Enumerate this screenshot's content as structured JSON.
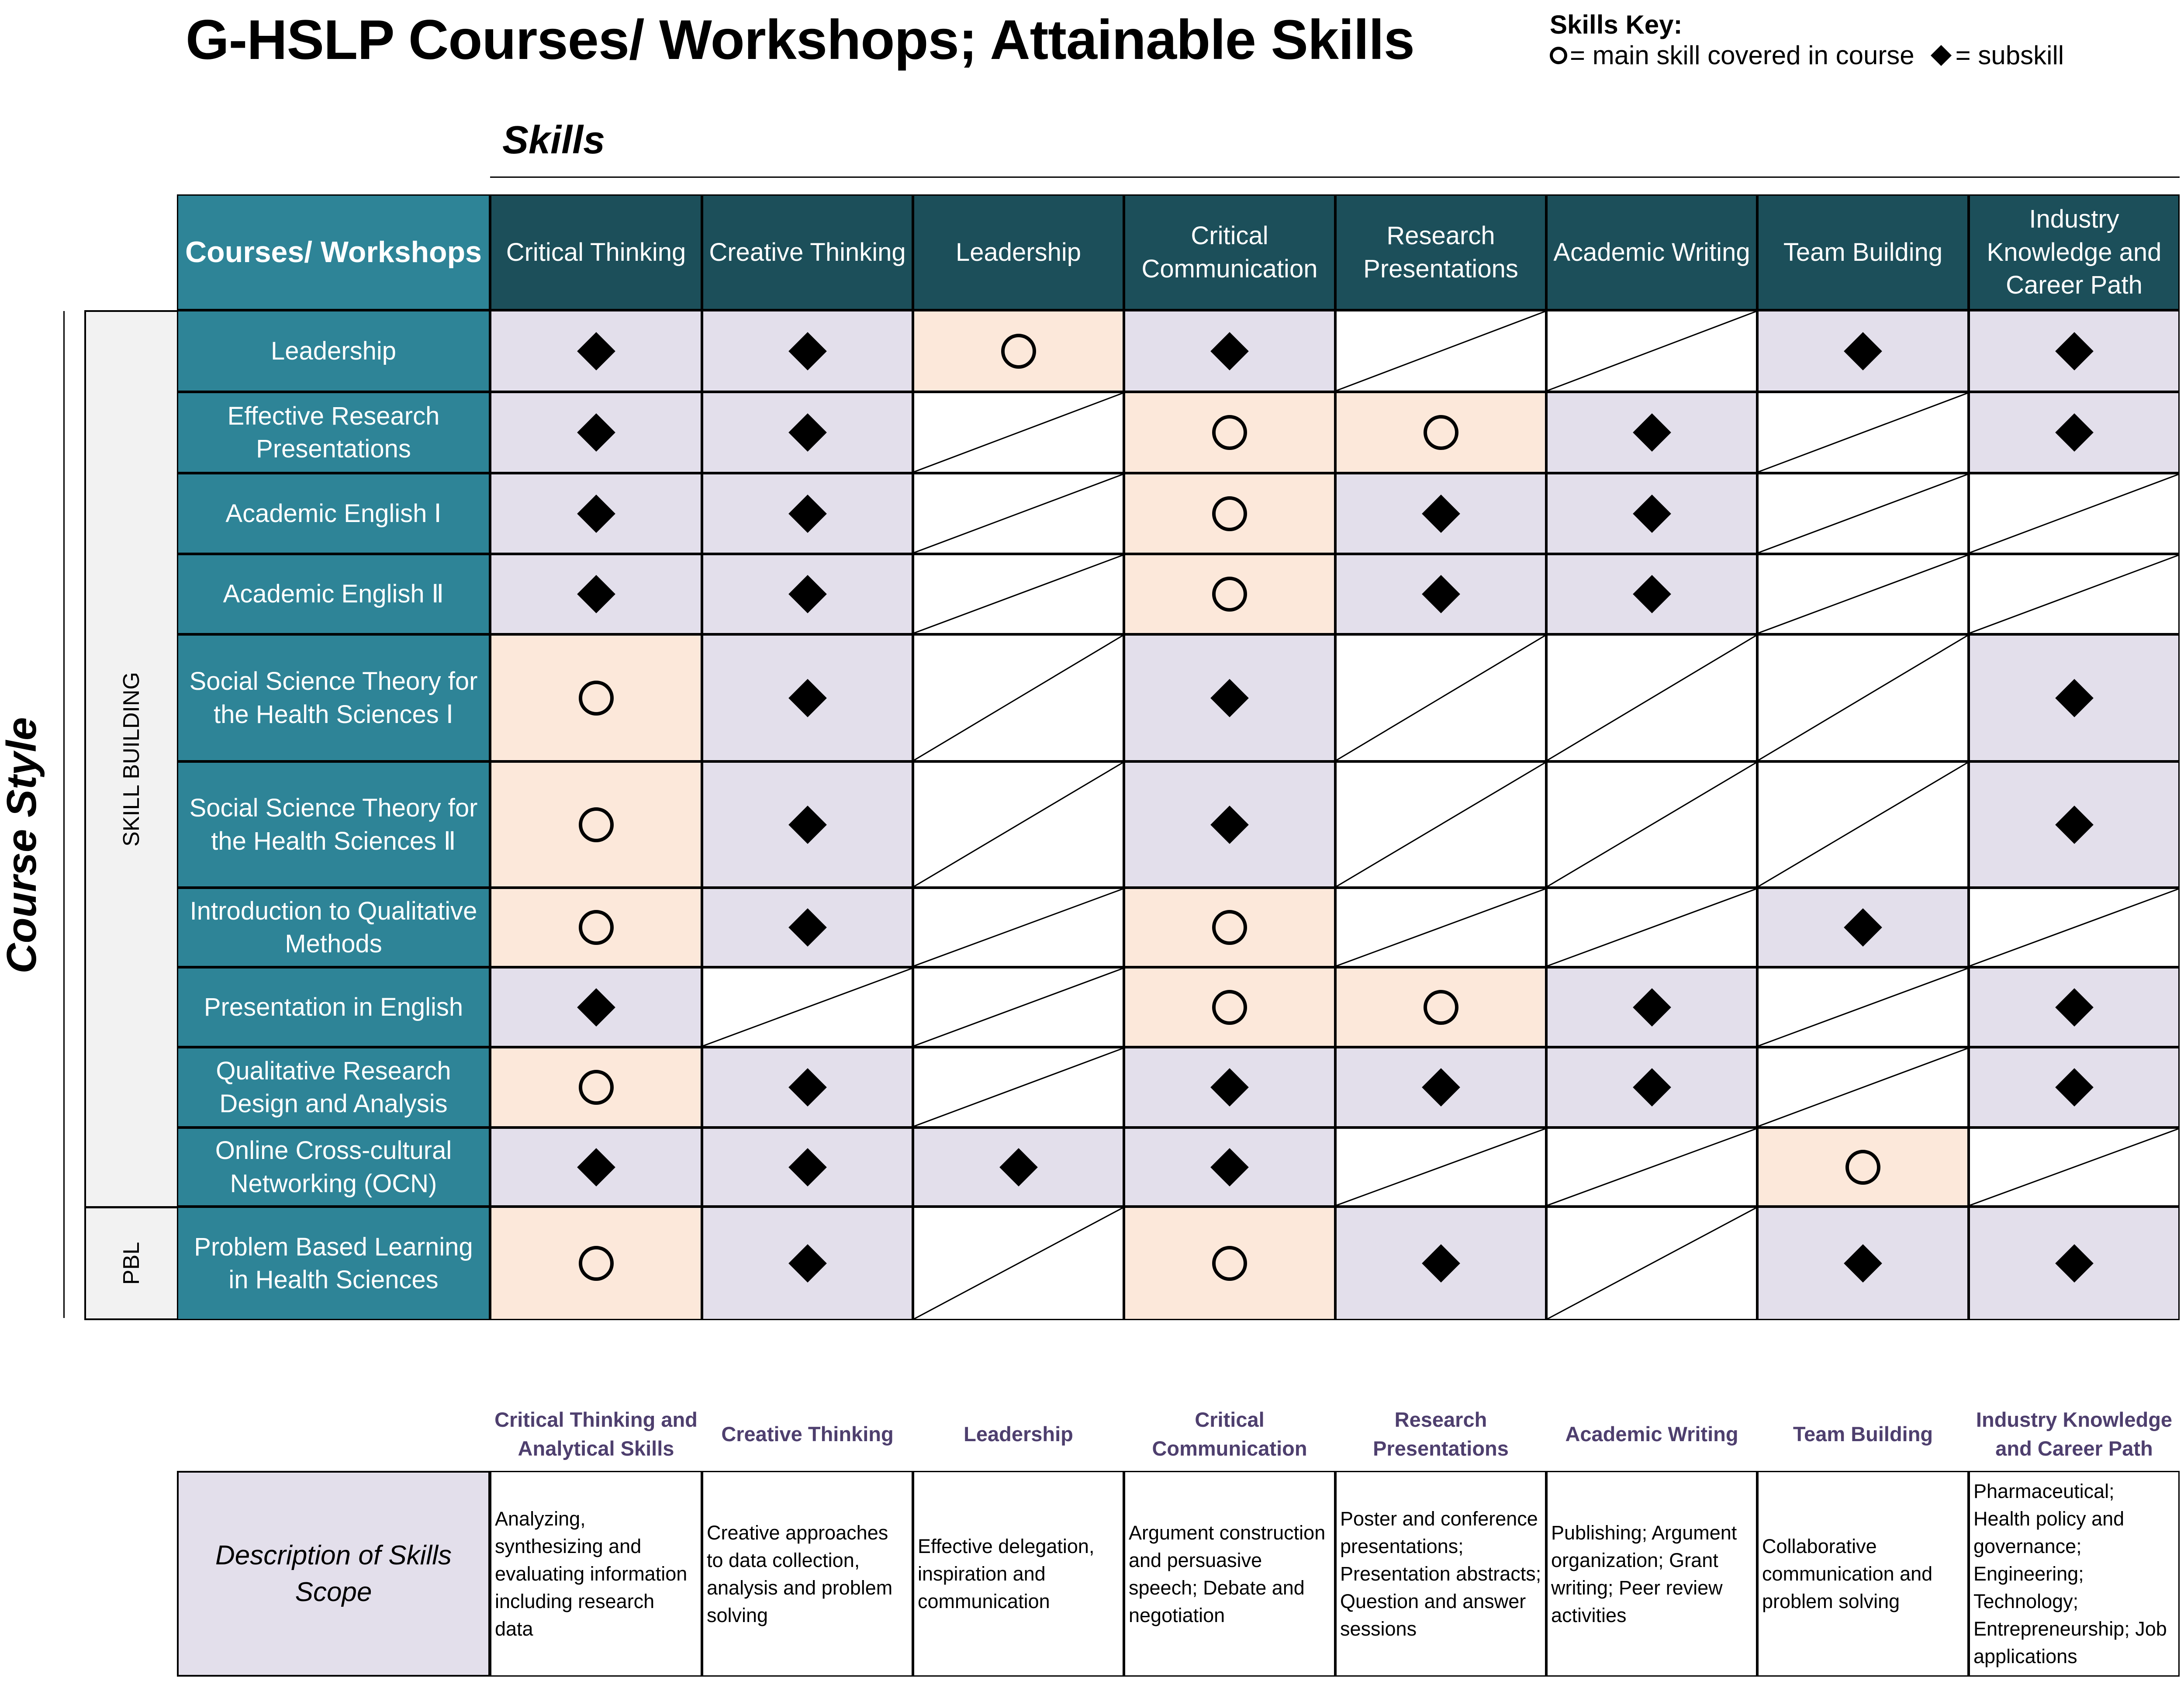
{
  "title": "G-HSLP Courses/ Workshops; Attainable Skills",
  "key": {
    "title": "Skills Key:",
    "main_label": "= main skill covered in course",
    "sub_label": "= subskill"
  },
  "skills_label": "Skills",
  "course_style_label": "Course Style",
  "groups": {
    "skill_building": "SKILL BUILDING",
    "pbl": "PBL"
  },
  "courses_header": "Courses/ Workshops",
  "skills": [
    "Critical Thinking",
    "Creative Thinking",
    "Leadership",
    "Critical Communication",
    "Research Presentations",
    "Academic Writing",
    "Team Building",
    "Industry Knowledge and Career Path"
  ],
  "courses": [
    {
      "name": "Leadership",
      "cells": [
        "sub",
        "sub",
        "main",
        "sub",
        "none",
        "none",
        "sub",
        "sub"
      ]
    },
    {
      "name": "Effective Research Presentations",
      "cells": [
        "sub",
        "sub",
        "none",
        "main",
        "main",
        "sub",
        "none",
        "sub"
      ]
    },
    {
      "name": "Academic English Ⅰ",
      "cells": [
        "sub",
        "sub",
        "none",
        "main",
        "sub",
        "sub",
        "none",
        "none"
      ]
    },
    {
      "name": "Academic English Ⅱ",
      "cells": [
        "sub",
        "sub",
        "none",
        "main",
        "sub",
        "sub",
        "none",
        "none"
      ]
    },
    {
      "name": "Social Science Theory for the Health Sciences Ⅰ",
      "cells": [
        "main",
        "sub",
        "none",
        "sub",
        "none",
        "none",
        "none",
        "sub"
      ]
    },
    {
      "name": "Social Science Theory for the Health Sciences Ⅱ",
      "cells": [
        "main",
        "sub",
        "none",
        "sub",
        "none",
        "none",
        "none",
        "sub"
      ]
    },
    {
      "name": "Introduction to Qualitative Methods",
      "cells": [
        "main",
        "sub",
        "none",
        "main",
        "none",
        "none",
        "sub",
        "none"
      ]
    },
    {
      "name": "Presentation in English",
      "cells": [
        "sub",
        "none",
        "none",
        "main",
        "main",
        "sub",
        "none",
        "sub"
      ]
    },
    {
      "name": "Qualitative Research Design and Analysis",
      "cells": [
        "main",
        "sub",
        "none",
        "sub",
        "sub",
        "sub",
        "none",
        "sub"
      ]
    },
    {
      "name": "Online Cross-cultural Networking (OCN)",
      "cells": [
        "sub",
        "sub",
        "sub",
        "sub",
        "none",
        "none",
        "main",
        "none"
      ]
    },
    {
      "name": "Problem Based Learning in Health Sciences",
      "cells": [
        "main",
        "sub",
        "none",
        "main",
        "sub",
        "none",
        "sub",
        "sub"
      ]
    }
  ],
  "description_headers": [
    "Critical Thinking and Analytical Skills",
    "Creative Thinking",
    "Leadership",
    "Critical Communication",
    "Research Presentations",
    "Academic Writing",
    "Team Building",
    "Industry Knowledge and Career Path"
  ],
  "description_label": "Description of Skills Scope",
  "descriptions": [
    "Analyzing, synthesizing and evaluating information including research data",
    "Creative approaches to data collection, analysis and problem solving",
    "Effective delegation, inspiration and communication",
    " Argument construction and persuasive speech; Debate and negotiation",
    "Poster and conference presentations; Presentation abstracts; Question and answer sessions",
    "Publishing; Argument organization; Grant writing; Peer review activities",
    "Collaborative communication and problem solving",
    "Pharmaceutical; Health policy and governance; Engineering; Technology; Entrepreneurship; Job applications"
  ],
  "colors": {
    "header_dark": "#1c4f5a",
    "header_teal": "#2e8497",
    "main_skill_fill": "#fce8da",
    "subskill_fill": "#e3dfeb",
    "description_header_text": "#4e3f6e"
  },
  "cell_markers": {
    "main": "circle-icon",
    "sub": "diamond-icon",
    "none": "diagonal-slash"
  }
}
